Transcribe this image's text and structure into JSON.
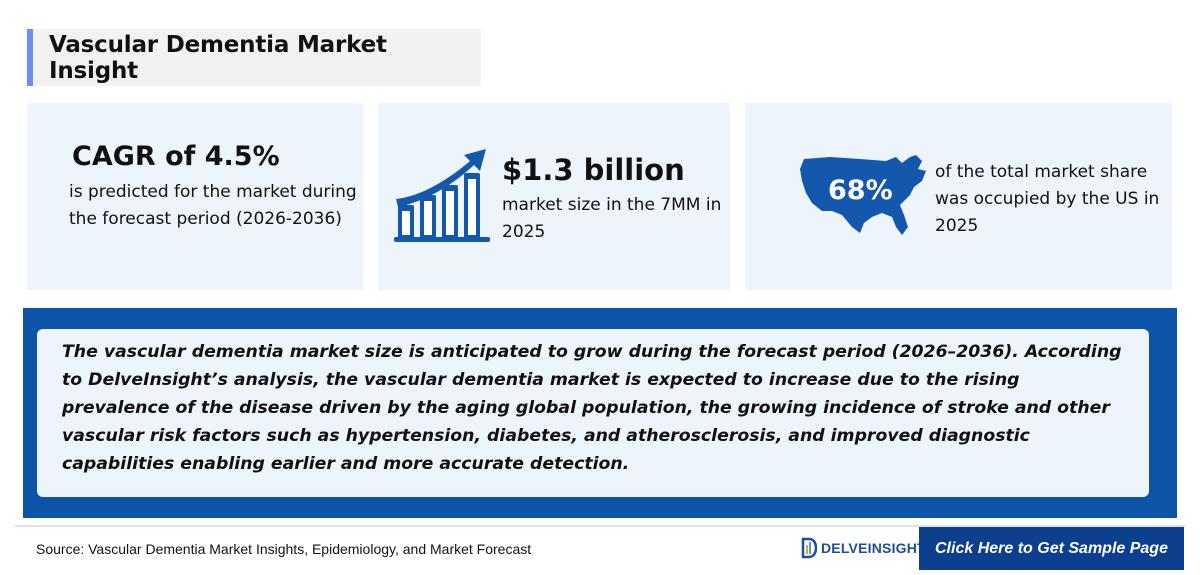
{
  "header": {
    "title": "Vascular Dementia Market Insight"
  },
  "cards": [
    {
      "headline": "CAGR of 4.5%",
      "body": "is predicted for the market during the forecast period (2026-2036)",
      "icon": "growth-chart-icon"
    },
    {
      "headline": "$1.3 billion",
      "body": "market size in the 7MM in 2025",
      "icon": "bar-chart-arrow-icon"
    },
    {
      "headline": "68%",
      "body": "of the total market share was occupied by the US in 2025",
      "icon": "us-map-icon"
    }
  ],
  "summary": {
    "text": "The vascular dementia market size is anticipated to grow during the forecast period (2026–2036). According to DelveInsight’s analysis, the vascular dementia market is expected to increase due to the rising prevalence of the disease driven by the aging global population, the growing incidence of stroke and other vascular risk factors such as hypertension, diabetes, and atherosclerosis, and improved diagnostic capabilities enabling earlier and more accurate detection."
  },
  "footer": {
    "source": "Source: Vascular Dementia Market Insights, Epidemiology, and Market Forecast",
    "logo_text": "DELVEINSIGHT",
    "cta_label": "Click Here to Get Sample Page"
  },
  "colors": {
    "accent": "#6b8ef5",
    "brand_blue": "#0d54a8",
    "card_bg": "#eef4fc",
    "cta_bg": "#0d3f8f",
    "icon_blue": "#1358ad"
  }
}
